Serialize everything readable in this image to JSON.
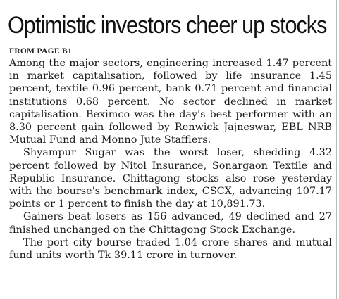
{
  "headline": "Optimistic investors cheer up stocks",
  "kicker": "FROM PAGE B1",
  "top_clipped_text": "",
  "paragraphs": [
    "Among the major sectors, engineering increased 1.47 per­cent in market capitalisation, followed by life insurance 1.45 percent, textile 0.96 percent, bank 0.71 percent and financial institutions 0.68 percent. No sector declined in market capitalisation. Beximco was the day's best performer with an 8.30 percent gain followed by Renwick Jajneswar, EBL NRB Mutual Fund and Monno Jute Stafflers.",
    "Shyampur Sugar was the worst loser, shedding 4.32 percent followed by Nitol Insurance, Sonargaon Textile and Republic Insurance. Chittagong stocks also rose yesterday with the bourse's benchmark index, CSCX, advancing 107.17 points or 1 percent to finish the day at 10,891.73.",
    "Gainers beat losers as 156 advanced, 49 declined and 27 finished unchanged on the Chittagong Stock Exchange.",
    "The port city bourse traded 1.04 crore shares and mutual fund units worth Tk 39.11 crore in turnover."
  ]
}
